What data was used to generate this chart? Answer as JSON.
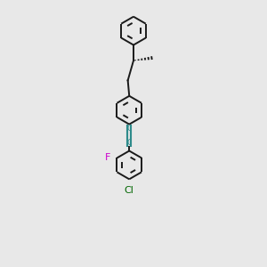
{
  "bg_color": "#e8e8e8",
  "bond_color": "#1a1a1a",
  "triple_bond_color": "#2e8b8b",
  "F_color": "#cc00cc",
  "Cl_color": "#006600",
  "lw": 1.4,
  "figsize": [
    3.0,
    3.0
  ],
  "dpi": 100,
  "xlim": [
    0.0,
    1.0
  ],
  "ylim": [
    -0.1,
    3.6
  ]
}
